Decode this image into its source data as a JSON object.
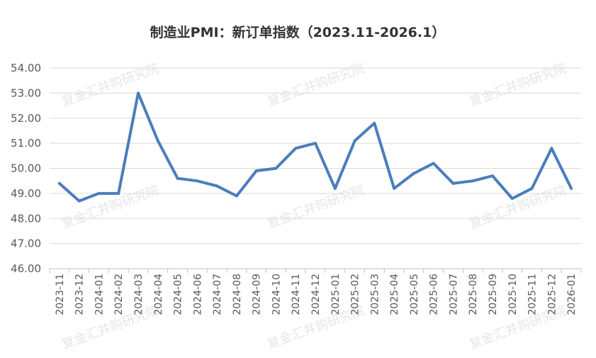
{
  "chart_data": {
    "type": "line",
    "title": "制造业PMI：新订单指数（2023.11-2026.1）",
    "xlabel": "",
    "ylabel": "",
    "ylim": [
      46.0,
      54.0
    ],
    "yticks": [
      "46.00",
      "47.00",
      "48.00",
      "49.00",
      "50.00",
      "51.00",
      "52.00",
      "53.00",
      "54.00"
    ],
    "grid": true,
    "legend": "none",
    "categories": [
      "2023-11",
      "2023-12",
      "2024-01",
      "2024-02",
      "2024-03",
      "2024-04",
      "2024-05",
      "2024-06",
      "2024-07",
      "2024-08",
      "2024-09",
      "2024-10",
      "2024-11",
      "2024-12",
      "2025-01",
      "2025-02",
      "2025-03",
      "2025-04",
      "2025-05",
      "2025-06",
      "2025-07",
      "2025-08",
      "2025-09",
      "2025-10",
      "2025-11",
      "2025-12",
      "2026-01"
    ],
    "series": [
      {
        "values": [
          49.4,
          48.7,
          49.0,
          49.0,
          53.0,
          51.1,
          49.6,
          49.5,
          49.3,
          48.9,
          49.9,
          50.0,
          50.8,
          51.0,
          49.2,
          51.1,
          51.8,
          49.2,
          49.8,
          50.2,
          49.4,
          49.5,
          49.7,
          48.8,
          49.2,
          50.8,
          49.2
        ],
        "color": "#4a7ebb"
      }
    ],
    "watermark": "复金汇并购研究院"
  }
}
